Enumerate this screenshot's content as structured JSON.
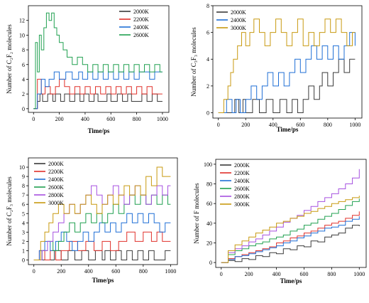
{
  "figure": {
    "panels": 4
  },
  "colors": {
    "2000K": "#3a3a3a",
    "2200K": "#e0302a",
    "2400K": "#1f6fd6",
    "2600K": "#20a050",
    "2800K": "#a650e0",
    "3000K": "#c89a10"
  },
  "chart_data": [
    {
      "type": "line",
      "step": true,
      "xlabel": "Time/ps",
      "ylabel": "Number of C₂F₂ molecules",
      "xlim": [
        -40,
        1050
      ],
      "ylim": [
        -0.5,
        14
      ],
      "xticks": [
        0,
        200,
        400,
        600,
        800,
        1000
      ],
      "yticks": [
        0,
        2,
        4,
        6,
        8,
        10,
        12
      ],
      "legend": "top-right",
      "series": [
        {
          "name": "2000K",
          "color": "#3a3a3a",
          "x": [
            0,
            30,
            50,
            70,
            110,
            150,
            170,
            210,
            240,
            280,
            320,
            360,
            390,
            430,
            470,
            500,
            540,
            570,
            600,
            620,
            650,
            690,
            730,
            760,
            800,
            840,
            880,
            920,
            960,
            1000
          ],
          "y": [
            0,
            1,
            2,
            1,
            2,
            1,
            2,
            1,
            2,
            1,
            2,
            1,
            2,
            1,
            2,
            1,
            1,
            2,
            1,
            1,
            2,
            1,
            2,
            1,
            1,
            2,
            1,
            2,
            1,
            1
          ]
        },
        {
          "name": "2200K",
          "color": "#e0302a",
          "x": [
            0,
            30,
            60,
            90,
            130,
            170,
            200,
            240,
            280,
            320,
            360,
            400,
            440,
            480,
            520,
            560,
            600,
            640,
            680,
            720,
            760,
            800,
            840,
            880,
            920,
            960,
            1000
          ],
          "y": [
            0,
            4,
            2,
            3,
            2,
            3,
            4,
            3,
            2,
            3,
            2,
            3,
            2,
            3,
            2,
            3,
            2,
            3,
            2,
            3,
            2,
            3,
            2,
            3,
            2,
            2,
            2
          ]
        },
        {
          "name": "2400K",
          "color": "#1f6fd6",
          "x": [
            0,
            30,
            60,
            90,
            120,
            160,
            200,
            250,
            300,
            350,
            380,
            420,
            460,
            500,
            540,
            580,
            620,
            660,
            700,
            740,
            780,
            820,
            860,
            900,
            940,
            980,
            1000
          ],
          "y": [
            0,
            2,
            4,
            3,
            4,
            5,
            4,
            5,
            4,
            5,
            4,
            5,
            4,
            5,
            4,
            5,
            4,
            5,
            4,
            5,
            4,
            5,
            5,
            4,
            5,
            5,
            5
          ]
        },
        {
          "name": "2600K",
          "color": "#20a050",
          "x": [
            0,
            15,
            30,
            45,
            60,
            80,
            100,
            120,
            140,
            160,
            180,
            200,
            230,
            260,
            300,
            340,
            380,
            420,
            460,
            500,
            540,
            580,
            620,
            660,
            700,
            740,
            780,
            820,
            860,
            900,
            940,
            980,
            1000
          ],
          "y": [
            0,
            9,
            5,
            10,
            8,
            11,
            13,
            12,
            13,
            11,
            10,
            9,
            8,
            7,
            6,
            7,
            6,
            5,
            6,
            5,
            6,
            5,
            6,
            5,
            6,
            5,
            6,
            5,
            6,
            5,
            6,
            5,
            5
          ]
        }
      ]
    },
    {
      "type": "line",
      "step": true,
      "xlabel": "Time/ps",
      "ylabel": "Number of C₃F₃ molecules",
      "xlim": [
        -40,
        1050
      ],
      "ylim": [
        -0.4,
        8
      ],
      "xticks": [
        0,
        200,
        400,
        600,
        800,
        1000
      ],
      "yticks": [
        0,
        2,
        4,
        6,
        8
      ],
      "legend": "top-left",
      "series": [
        {
          "name": "2000K",
          "color": "#3a3a3a",
          "x": [
            0,
            100,
            120,
            150,
            180,
            200,
            250,
            300,
            350,
            400,
            450,
            500,
            540,
            580,
            620,
            660,
            700,
            740,
            760,
            800,
            840,
            880,
            920,
            960,
            1000
          ],
          "y": [
            0,
            0,
            1,
            0,
            1,
            0,
            1,
            0,
            1,
            0,
            1,
            0,
            1,
            0,
            1,
            2,
            1,
            2,
            3,
            2,
            3,
            4,
            3,
            4,
            4
          ]
        },
        {
          "name": "2400K",
          "color": "#1f6fd6",
          "x": [
            0,
            60,
            100,
            130,
            160,
            200,
            240,
            280,
            320,
            360,
            400,
            440,
            480,
            520,
            560,
            600,
            640,
            680,
            720,
            760,
            800,
            840,
            880,
            920,
            960,
            1000
          ],
          "y": [
            0,
            1,
            0,
            1,
            0,
            1,
            2,
            1,
            2,
            3,
            2,
            3,
            2,
            3,
            4,
            3,
            4,
            5,
            4,
            5,
            4,
            5,
            4,
            5,
            6,
            5
          ]
        },
        {
          "name": "3000K",
          "color": "#c89a10",
          "x": [
            0,
            40,
            70,
            90,
            110,
            140,
            170,
            200,
            230,
            260,
            300,
            340,
            380,
            420,
            460,
            500,
            540,
            580,
            620,
            660,
            700,
            740,
            780,
            820,
            860,
            900,
            940,
            980,
            1000
          ],
          "y": [
            0,
            1,
            2,
            3,
            4,
            5,
            6,
            5,
            6,
            7,
            6,
            5,
            6,
            7,
            6,
            5,
            6,
            7,
            5,
            6,
            5,
            6,
            7,
            6,
            7,
            6,
            5,
            6,
            6
          ]
        }
      ]
    },
    {
      "type": "line",
      "step": true,
      "xlabel": "Time/ps",
      "ylabel": "Number of C₂F₃ molecules",
      "xlim": [
        -40,
        1050
      ],
      "ylim": [
        -0.5,
        11
      ],
      "xticks": [
        0,
        200,
        400,
        600,
        800,
        1000
      ],
      "yticks": [
        0,
        1,
        2,
        3,
        4,
        5,
        6,
        7,
        8,
        9,
        10
      ],
      "legend": "top-left",
      "series": [
        {
          "name": "2000K",
          "color": "#3a3a3a",
          "x": [
            0,
            100,
            150,
            200,
            250,
            300,
            350,
            400,
            450,
            500,
            520,
            560,
            600,
            640,
            680,
            720,
            760,
            800,
            840,
            880,
            920,
            960,
            1000
          ],
          "y": [
            0,
            0,
            1,
            0,
            1,
            0,
            1,
            0,
            1,
            0,
            1,
            0,
            1,
            0,
            1,
            0,
            1,
            0,
            1,
            0,
            0,
            1,
            1
          ]
        },
        {
          "name": "2200K",
          "color": "#e0302a",
          "x": [
            0,
            40,
            80,
            120,
            160,
            200,
            260,
            320,
            380,
            440,
            500,
            560,
            620,
            680,
            740,
            800,
            860,
            900,
            940,
            980,
            1000
          ],
          "y": [
            0,
            1,
            0,
            1,
            0,
            1,
            2,
            1,
            2,
            1,
            2,
            1,
            2,
            3,
            2,
            3,
            2,
            3,
            2,
            2,
            2
          ]
        },
        {
          "name": "2400K",
          "color": "#1f6fd6",
          "x": [
            0,
            40,
            80,
            120,
            160,
            200,
            240,
            280,
            320,
            360,
            400,
            440,
            480,
            520,
            560,
            600,
            640,
            680,
            720,
            760,
            800,
            840,
            880,
            920,
            960,
            1000
          ],
          "y": [
            0,
            1,
            2,
            1,
            2,
            3,
            2,
            1,
            2,
            3,
            2,
            3,
            4,
            3,
            4,
            3,
            4,
            5,
            4,
            5,
            4,
            5,
            4,
            3,
            4,
            4
          ]
        },
        {
          "name": "2600K",
          "color": "#20a050",
          "x": [
            0,
            60,
            100,
            140,
            180,
            220,
            260,
            300,
            340,
            380,
            420,
            460,
            500,
            540,
            580,
            620,
            660,
            700,
            740,
            780,
            820,
            860,
            900,
            940,
            980,
            1000
          ],
          "y": [
            0,
            1,
            2,
            1,
            2,
            3,
            4,
            3,
            4,
            5,
            4,
            5,
            4,
            5,
            6,
            5,
            6,
            7,
            6,
            7,
            6,
            7,
            6,
            7,
            6,
            6
          ]
        },
        {
          "name": "2800K",
          "color": "#a650e0",
          "x": [
            0,
            60,
            100,
            140,
            180,
            220,
            260,
            300,
            340,
            380,
            420,
            460,
            500,
            540,
            580,
            620,
            660,
            700,
            740,
            780,
            820,
            860,
            900,
            940,
            980,
            1000
          ],
          "y": [
            0,
            1,
            2,
            3,
            4,
            5,
            6,
            5,
            6,
            7,
            8,
            7,
            6,
            7,
            8,
            7,
            6,
            7,
            8,
            7,
            6,
            7,
            8,
            7,
            8,
            8
          ]
        },
        {
          "name": "3000K",
          "color": "#c89a10",
          "x": [
            0,
            50,
            80,
            110,
            140,
            180,
            220,
            260,
            300,
            340,
            380,
            420,
            460,
            500,
            540,
            580,
            620,
            660,
            700,
            740,
            780,
            820,
            860,
            900,
            940,
            980,
            1000
          ],
          "y": [
            0,
            2,
            3,
            4,
            5,
            6,
            5,
            6,
            5,
            6,
            7,
            6,
            5,
            6,
            7,
            6,
            7,
            8,
            7,
            8,
            7,
            9,
            8,
            10,
            9,
            9,
            9
          ]
        }
      ]
    },
    {
      "type": "line",
      "step": true,
      "xlabel": "Time/ps",
      "ylabel": "Number of F molecules",
      "xlim": [
        -40,
        1050
      ],
      "ylim": [
        -5,
        105
      ],
      "xticks": [
        0,
        200,
        400,
        600,
        800,
        1000
      ],
      "yticks": [
        0,
        20,
        40,
        60,
        80,
        100
      ],
      "legend": "top-left",
      "series": [
        {
          "name": "2000K",
          "color": "#3a3a3a",
          "x": [
            0,
            50,
            100,
            150,
            200,
            250,
            300,
            350,
            400,
            450,
            500,
            550,
            600,
            650,
            700,
            750,
            800,
            850,
            900,
            950,
            1000
          ],
          "y": [
            0,
            2,
            1,
            4,
            3,
            7,
            6,
            10,
            9,
            14,
            13,
            17,
            16,
            22,
            21,
            26,
            28,
            30,
            35,
            38,
            37
          ]
        },
        {
          "name": "2200K",
          "color": "#e0302a",
          "x": [
            0,
            50,
            100,
            150,
            200,
            250,
            300,
            350,
            400,
            450,
            500,
            550,
            600,
            650,
            700,
            750,
            800,
            850,
            900,
            950,
            1000
          ],
          "y": [
            0,
            4,
            6,
            8,
            10,
            12,
            14,
            16,
            20,
            22,
            25,
            27,
            30,
            32,
            35,
            38,
            40,
            42,
            45,
            48,
            52
          ]
        },
        {
          "name": "2400K",
          "color": "#1f6fd6",
          "x": [
            0,
            50,
            100,
            150,
            200,
            250,
            300,
            350,
            400,
            450,
            500,
            550,
            600,
            650,
            700,
            750,
            800,
            850,
            900,
            950,
            1000
          ],
          "y": [
            0,
            3,
            6,
            7,
            9,
            11,
            13,
            15,
            17,
            20,
            22,
            25,
            27,
            30,
            32,
            35,
            36,
            38,
            42,
            44,
            47
          ]
        },
        {
          "name": "2600K",
          "color": "#20a050",
          "x": [
            0,
            50,
            100,
            150,
            200,
            250,
            300,
            350,
            400,
            450,
            500,
            550,
            600,
            650,
            700,
            750,
            800,
            850,
            900,
            950,
            1000
          ],
          "y": [
            0,
            8,
            12,
            14,
            17,
            19,
            21,
            24,
            26,
            28,
            32,
            34,
            38,
            40,
            44,
            47,
            50,
            54,
            58,
            62,
            65
          ]
        },
        {
          "name": "2800K",
          "color": "#a650e0",
          "x": [
            0,
            50,
            100,
            150,
            200,
            250,
            300,
            350,
            400,
            450,
            500,
            550,
            600,
            650,
            700,
            750,
            800,
            850,
            900,
            950,
            1000
          ],
          "y": [
            0,
            10,
            14,
            17,
            21,
            24,
            28,
            32,
            36,
            41,
            45,
            48,
            53,
            57,
            62,
            66,
            70,
            75,
            80,
            86,
            95
          ]
        },
        {
          "name": "3000K",
          "color": "#c89a10",
          "x": [
            0,
            50,
            100,
            150,
            200,
            250,
            300,
            350,
            400,
            450,
            500,
            550,
            600,
            650,
            700,
            750,
            800,
            850,
            900,
            950,
            1000
          ],
          "y": [
            0,
            12,
            18,
            22,
            26,
            30,
            33,
            36,
            40,
            42,
            45,
            47,
            50,
            52,
            55,
            57,
            60,
            62,
            64,
            66,
            68
          ]
        }
      ]
    }
  ]
}
